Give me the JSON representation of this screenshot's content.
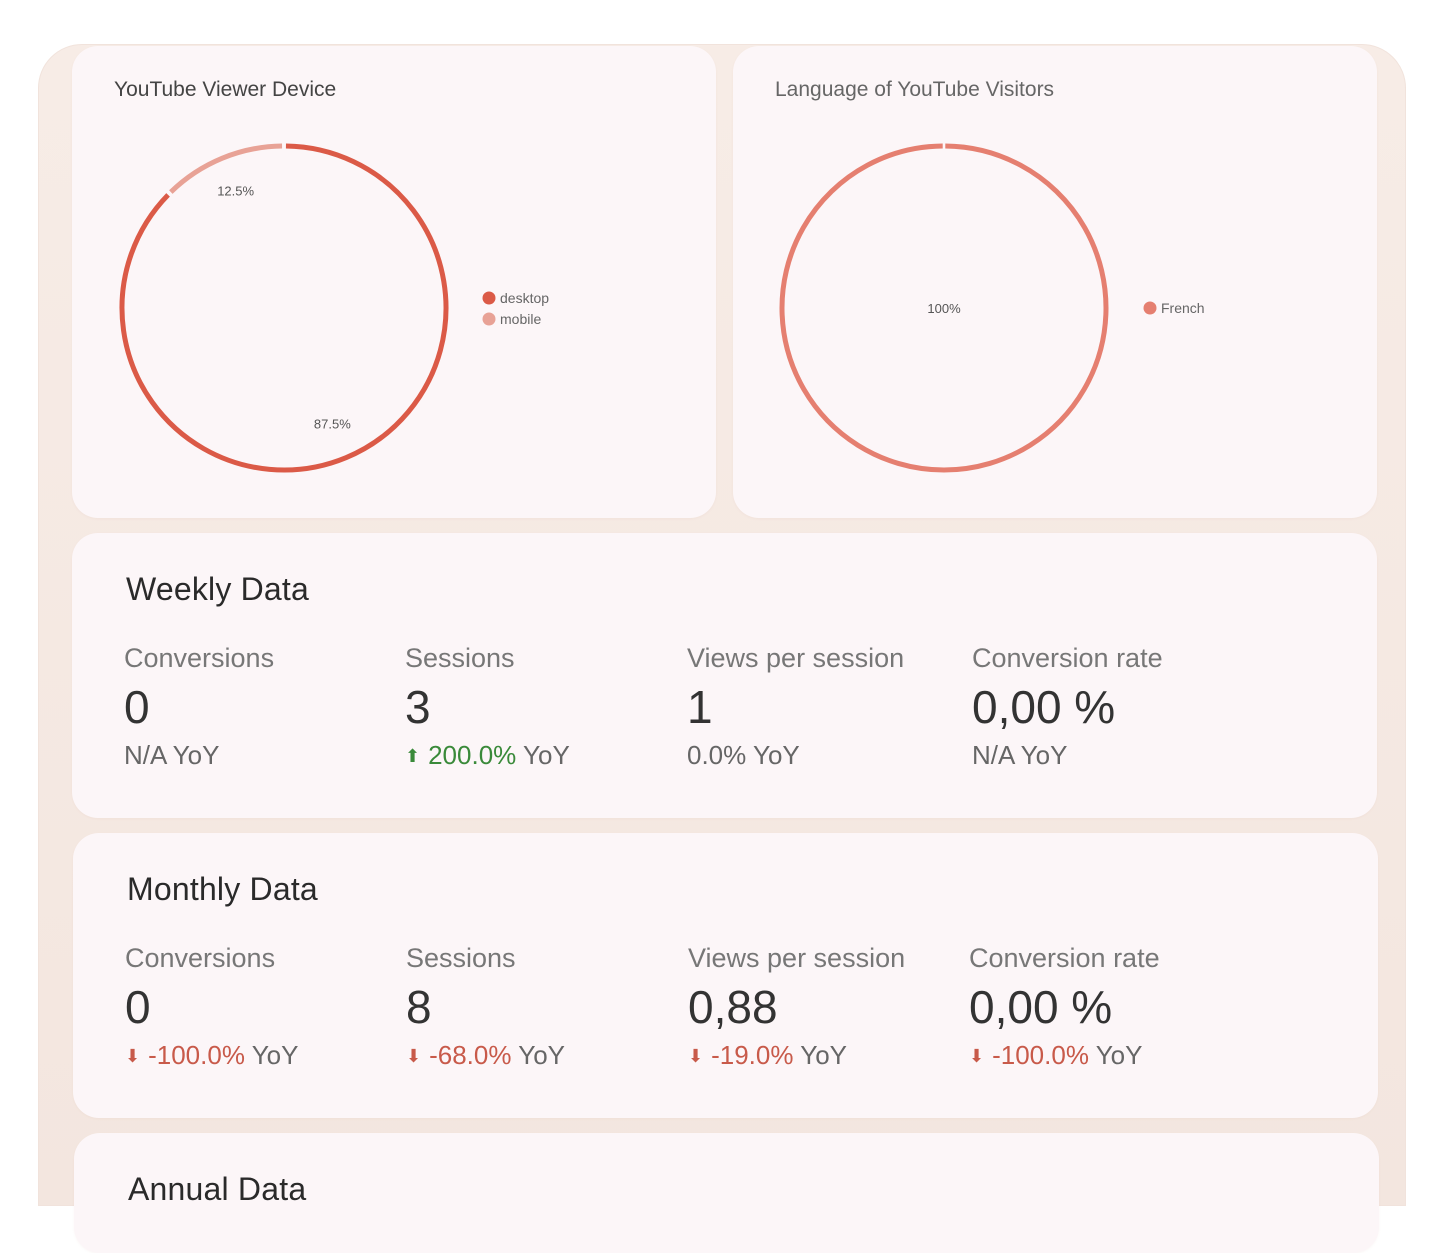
{
  "device_chart": {
    "title": "YouTube Viewer Device",
    "legend": [
      {
        "label": "desktop",
        "color": "#db5a47"
      },
      {
        "label": "mobile",
        "color": "#e8a296"
      }
    ],
    "slices": [
      {
        "label": "87.5%",
        "value": 87.5,
        "color": "#db5a47"
      },
      {
        "label": "12.5%",
        "value": 12.5,
        "color": "#e8a296"
      }
    ]
  },
  "language_chart": {
    "title": "Language of YouTube Visitors",
    "legend": [
      {
        "label": "French",
        "color": "#e57f70"
      }
    ],
    "slices": [
      {
        "label": "100%",
        "value": 100,
        "color": "#e57f70"
      }
    ]
  },
  "chart_data": [
    {
      "type": "pie",
      "title": "YouTube Viewer Device",
      "categories": [
        "desktop",
        "mobile"
      ],
      "values": [
        87.5,
        12.5
      ],
      "legend": "right"
    },
    {
      "type": "pie",
      "title": "Language of YouTube Visitors",
      "categories": [
        "French"
      ],
      "values": [
        100
      ],
      "legend": "right"
    }
  ],
  "weekly": {
    "title": "Weekly Data",
    "metrics": [
      {
        "label": "Conversions",
        "value": "0",
        "trend": "",
        "trend_text": "",
        "yoy_suffix": "N/A YoY"
      },
      {
        "label": "Sessions",
        "value": "3",
        "trend": "up",
        "trend_text": "200.0%",
        "yoy_suffix": " YoY"
      },
      {
        "label": "Views per session",
        "value": "1",
        "trend": "",
        "trend_text": "",
        "yoy_suffix": "0.0% YoY"
      },
      {
        "label": "Conversion rate",
        "value": "0,00 %",
        "trend": "",
        "trend_text": "",
        "yoy_suffix": "N/A YoY"
      }
    ]
  },
  "monthly": {
    "title": "Monthly Data",
    "metrics": [
      {
        "label": "Conversions",
        "value": "0",
        "trend": "down",
        "trend_text": "-100.0%",
        "yoy_suffix": " YoY"
      },
      {
        "label": "Sessions",
        "value": "8",
        "trend": "down",
        "trend_text": "-68.0%",
        "yoy_suffix": " YoY"
      },
      {
        "label": "Views per session",
        "value": "0,88",
        "trend": "down",
        "trend_text": "-19.0%",
        "yoy_suffix": " YoY"
      },
      {
        "label": "Conversion rate",
        "value": "0,00 %",
        "trend": "down",
        "trend_text": "-100.0%",
        "yoy_suffix": " YoY"
      }
    ]
  },
  "annual": {
    "title": "Annual Data"
  },
  "icons": {
    "up": "arrow-up-icon",
    "down": "arrow-down-icon"
  }
}
